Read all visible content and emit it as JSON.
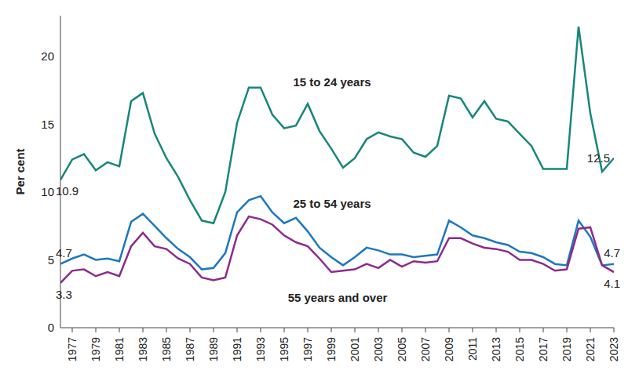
{
  "chart_data": {
    "type": "line",
    "y_label": "Per cent",
    "grid": false,
    "x": [
      1976,
      1977,
      1978,
      1979,
      1980,
      1981,
      1982,
      1983,
      1984,
      1985,
      1986,
      1987,
      1988,
      1989,
      1990,
      1991,
      1992,
      1993,
      1994,
      1995,
      1996,
      1997,
      1998,
      1999,
      2000,
      2001,
      2002,
      2003,
      2004,
      2005,
      2006,
      2007,
      2008,
      2009,
      2010,
      2011,
      2012,
      2013,
      2014,
      2015,
      2016,
      2017,
      2018,
      2019,
      2020,
      2021,
      2022,
      2023
    ],
    "xlim": [
      1976,
      2023
    ],
    "xticks": [
      1977,
      1979,
      1981,
      1983,
      1985,
      1987,
      1989,
      1991,
      1993,
      1995,
      1997,
      1999,
      2001,
      2003,
      2005,
      2007,
      2009,
      2011,
      2013,
      2015,
      2017,
      2019,
      2021,
      2023
    ],
    "ylim": [
      0,
      23
    ],
    "yticks": [
      0,
      5,
      10,
      15,
      20
    ],
    "series": [
      {
        "name": "15 to 24 years",
        "color": "#16877a",
        "values": [
          10.9,
          12.4,
          12.8,
          11.6,
          12.2,
          11.9,
          16.7,
          17.3,
          14.3,
          12.5,
          11.1,
          9.4,
          7.9,
          7.7,
          10.0,
          15.1,
          17.7,
          17.7,
          15.7,
          14.7,
          14.9,
          16.5,
          14.5,
          13.2,
          11.8,
          12.5,
          13.9,
          14.4,
          14.1,
          13.9,
          12.9,
          12.6,
          13.4,
          17.1,
          16.9,
          15.5,
          16.7,
          15.4,
          15.2,
          14.3,
          13.4,
          11.7,
          11.7,
          11.7,
          22.2,
          15.8,
          11.5,
          12.5
        ],
        "value_labels": [
          "10.9",
          null,
          null,
          null,
          null,
          null,
          null,
          null,
          null,
          null,
          null,
          null,
          null,
          null,
          null,
          null,
          null,
          null,
          null,
          null,
          null,
          null,
          null,
          null,
          null,
          null,
          null,
          null,
          null,
          null,
          null,
          null,
          null,
          null,
          null,
          null,
          null,
          null,
          null,
          null,
          null,
          null,
          null,
          null,
          null,
          null,
          null,
          "12.5"
        ]
      },
      {
        "name": "25 to 54 years",
        "color": "#1c78c0",
        "values": [
          4.7,
          5.1,
          5.4,
          5.0,
          5.1,
          4.9,
          7.8,
          8.4,
          7.5,
          6.6,
          5.8,
          5.2,
          4.3,
          4.4,
          5.5,
          8.5,
          9.4,
          9.7,
          8.5,
          7.7,
          8.1,
          7.1,
          5.9,
          5.2,
          4.6,
          5.2,
          5.9,
          5.7,
          5.4,
          5.4,
          5.2,
          5.3,
          5.4,
          7.9,
          7.4,
          6.8,
          6.6,
          6.3,
          6.1,
          5.6,
          5.5,
          5.2,
          4.7,
          4.6,
          7.9,
          6.7,
          4.6,
          4.7
        ],
        "value_labels": [
          "4.7",
          null,
          null,
          null,
          null,
          null,
          null,
          null,
          null,
          null,
          null,
          null,
          null,
          null,
          null,
          null,
          null,
          null,
          null,
          null,
          null,
          null,
          null,
          null,
          null,
          null,
          null,
          null,
          null,
          null,
          null,
          null,
          null,
          null,
          null,
          null,
          null,
          null,
          null,
          null,
          null,
          null,
          null,
          null,
          null,
          null,
          null,
          "4.7"
        ]
      },
      {
        "name": "55 years and over",
        "color": "#8d2a8c",
        "values": [
          3.3,
          4.2,
          4.3,
          3.8,
          4.1,
          3.8,
          6.0,
          7.0,
          6.0,
          5.8,
          5.1,
          4.7,
          3.7,
          3.5,
          3.7,
          6.8,
          8.2,
          8.0,
          7.6,
          6.8,
          6.3,
          6.0,
          5.1,
          4.1,
          4.2,
          4.3,
          4.7,
          4.4,
          5.0,
          4.5,
          4.9,
          4.8,
          4.9,
          6.6,
          6.6,
          6.2,
          5.9,
          5.8,
          5.6,
          5.0,
          5.0,
          4.7,
          4.2,
          4.3,
          7.3,
          7.4,
          4.6,
          4.1
        ],
        "value_labels": [
          "3.3",
          null,
          null,
          null,
          null,
          null,
          null,
          null,
          null,
          null,
          null,
          null,
          null,
          null,
          null,
          null,
          null,
          null,
          null,
          null,
          null,
          null,
          null,
          null,
          null,
          null,
          null,
          null,
          null,
          null,
          null,
          null,
          null,
          null,
          null,
          null,
          null,
          null,
          null,
          null,
          null,
          null,
          null,
          null,
          null,
          null,
          null,
          "4.1"
        ]
      }
    ]
  }
}
